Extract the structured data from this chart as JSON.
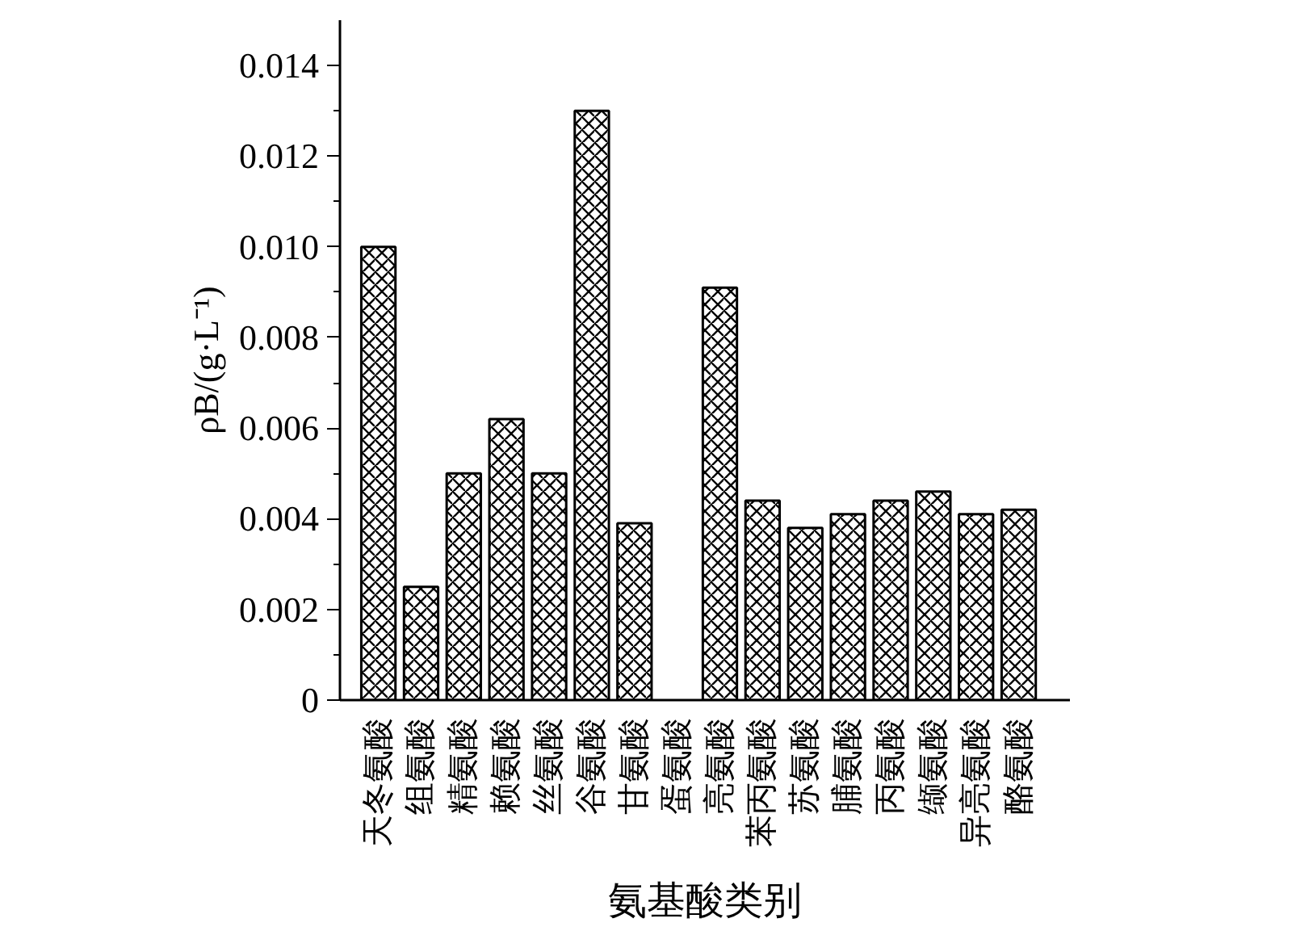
{
  "chart_data": {
    "type": "bar",
    "xlabel": "氨基酸类别",
    "ylabel": "ρB/(g·L⁻¹)",
    "categories": [
      "天冬氨酸",
      "组氨酸",
      "精氨酸",
      "赖氨酸",
      "丝氨酸",
      "谷氨酸",
      "甘氨酸",
      "蛋氨酸",
      "亮氨酸",
      "苯丙氨酸",
      "苏氨酸",
      "脯氨酸",
      "丙氨酸",
      "缬氨酸",
      "异亮氨酸",
      "酪氨酸"
    ],
    "series": [
      {
        "color": "#000000",
        "values": [
          0.01,
          0.0025,
          0.005,
          0.0062,
          0.005,
          0.013,
          0.0039,
          null,
          0.0091,
          0.0044,
          0.0038,
          0.0041,
          0.0044,
          0.0046,
          0.0041,
          0.0042
        ]
      }
    ],
    "ylim": [
      0,
      0.015
    ],
    "yticks": [
      0,
      {
        "value": 0.001,
        "label": null
      },
      {
        "value": 0.002,
        "label": "0.002"
      },
      {
        "value": 0.003,
        "label": null
      },
      {
        "value": 0.004,
        "label": "0.004"
      },
      {
        "value": 0.005,
        "label": null
      },
      {
        "value": 0.006,
        "label": "0.006"
      },
      {
        "value": 0.007,
        "label": null
      },
      {
        "value": 0.008,
        "label": "0.008"
      },
      {
        "value": 0.009,
        "label": null
      },
      {
        "value": 0.01,
        "label": "0.010"
      },
      {
        "value": 0.011,
        "label": null
      },
      {
        "value": 0.012,
        "label": "0.012"
      },
      {
        "value": 0.013,
        "label": null
      },
      {
        "value": 0.014,
        "label": "0.014"
      }
    ],
    "grid": false
  }
}
